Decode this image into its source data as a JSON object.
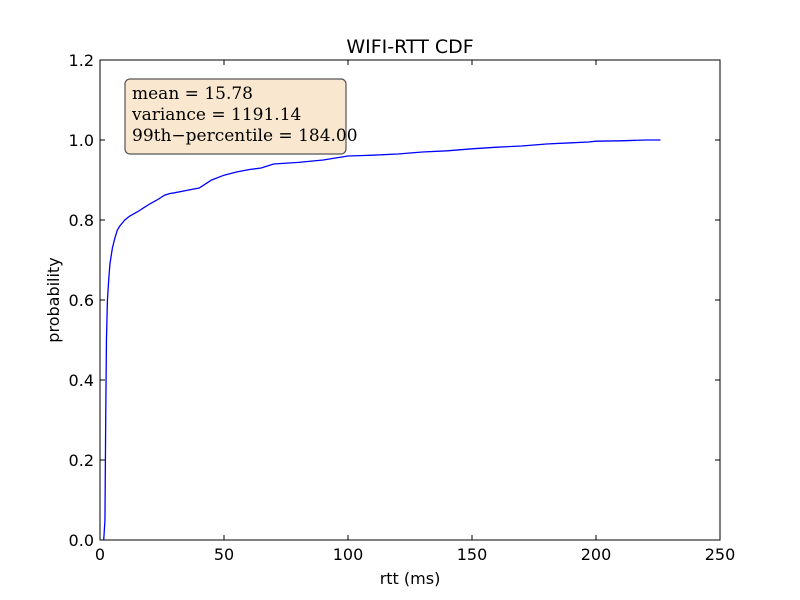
{
  "chart_data": {
    "type": "line",
    "title": "WIFI-RTT CDF",
    "xlabel": "rtt (ms)",
    "ylabel": "probability",
    "xlim": [
      0,
      250
    ],
    "ylim": [
      0,
      1.2
    ],
    "xticks": [
      0,
      50,
      100,
      150,
      200,
      250
    ],
    "yticks": [
      0.0,
      0.2,
      0.4,
      0.6,
      0.8,
      1.0,
      1.2
    ],
    "xtick_labels": [
      "0",
      "50",
      "100",
      "150",
      "200",
      "250"
    ],
    "ytick_labels": [
      "0.0",
      "0.2",
      "0.4",
      "0.6",
      "0.8",
      "1.0",
      "1.2"
    ],
    "grid": false,
    "series": [
      {
        "color": "#0000ff",
        "x": [
          1.5,
          2.0,
          2.3,
          2.6,
          3.0,
          3.5,
          4.0,
          5.0,
          6.0,
          7.0,
          8.0,
          10.0,
          12.0,
          15.0,
          18.0,
          20.0,
          23.0,
          26.0,
          28.0,
          30.0,
          35.0,
          40.0,
          42.0,
          45.0,
          50.0,
          55.0,
          60.0,
          65.0,
          70.0,
          80.0,
          90.0,
          95.0,
          100.0,
          105.0,
          110.0,
          120.0,
          130.0,
          140.0,
          150.0,
          160.0,
          170.0,
          180.0,
          190.0,
          197.0,
          200.0,
          210.0,
          220.0,
          226.0
        ],
        "y": [
          0.0,
          0.05,
          0.3,
          0.5,
          0.6,
          0.65,
          0.69,
          0.73,
          0.755,
          0.775,
          0.785,
          0.8,
          0.81,
          0.82,
          0.832,
          0.84,
          0.85,
          0.862,
          0.866,
          0.868,
          0.874,
          0.88,
          0.888,
          0.9,
          0.912,
          0.92,
          0.926,
          0.93,
          0.94,
          0.944,
          0.95,
          0.955,
          0.96,
          0.961,
          0.962,
          0.965,
          0.97,
          0.973,
          0.978,
          0.982,
          0.985,
          0.99,
          0.993,
          0.995,
          0.997,
          0.998,
          1.0,
          1.0
        ]
      }
    ],
    "annotation": {
      "lines": [
        "mean = 15.78",
        "variance = 1191.14",
        "99th−percentile = 184.00"
      ],
      "background": "#f9e7cf",
      "border": "#555555"
    }
  }
}
